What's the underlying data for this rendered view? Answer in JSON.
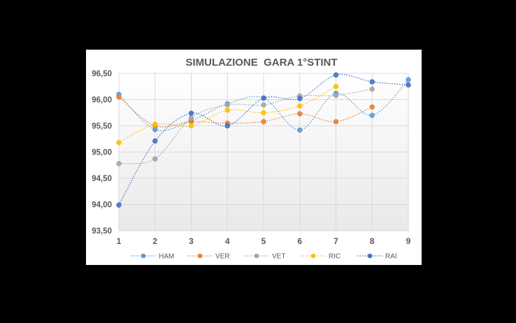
{
  "chart_data": {
    "type": "line",
    "title": "SIMULAZIONE  GARA 1°STINT",
    "xlabel": "",
    "ylabel": "",
    "x": [
      1,
      2,
      3,
      4,
      5,
      6,
      7,
      8,
      9
    ],
    "x_tick_labels": [
      "1",
      "2",
      "3",
      "4",
      "5",
      "6",
      "7",
      "8",
      "9"
    ],
    "ylim": [
      93.5,
      96.5
    ],
    "y_tick_values": [
      93.5,
      94.0,
      94.5,
      95.0,
      95.5,
      96.0,
      96.5
    ],
    "y_tick_labels": [
      "93,50",
      "94,00",
      "94,50",
      "95,00",
      "95,50",
      "96,00",
      "96,50"
    ],
    "grid": true,
    "legend_position": "bottom",
    "line_style": "dotted",
    "series": [
      {
        "name": "HAM",
        "color": "#5B9BD5",
        "values": [
          96.1,
          95.43,
          95.6,
          95.92,
          96.03,
          95.42,
          96.12,
          95.7,
          96.38
        ]
      },
      {
        "name": "VER",
        "color": "#ED7D31",
        "values": [
          96.05,
          95.5,
          95.58,
          95.55,
          95.58,
          95.73,
          95.58,
          95.86,
          null
        ]
      },
      {
        "name": "VET",
        "color": "#A5A5A5",
        "values": [
          94.78,
          94.87,
          95.65,
          95.9,
          95.9,
          96.07,
          96.08,
          96.2,
          null
        ]
      },
      {
        "name": "RIC",
        "color": "#FFC000",
        "values": [
          95.18,
          95.53,
          95.5,
          95.8,
          95.75,
          95.88,
          96.25,
          null,
          null
        ]
      },
      {
        "name": "RAI",
        "color": "#4472C4",
        "values": [
          93.99,
          95.21,
          95.74,
          95.5,
          96.03,
          96.02,
          96.47,
          96.34,
          96.28
        ]
      }
    ]
  }
}
